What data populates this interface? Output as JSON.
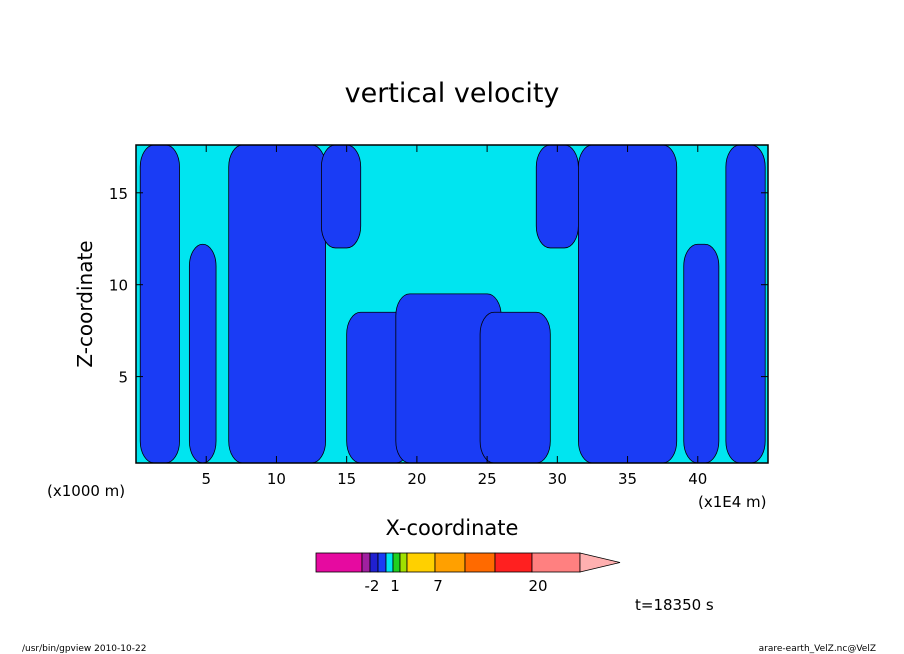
{
  "chart_data": {
    "type": "heatmap",
    "title": "vertical velocity",
    "xlabel": "X-coordinate",
    "ylabel": "Z-coordinate",
    "x_unit_left": "(x1000 m)",
    "x_unit_right": "(x1E4 m)",
    "xlim": [
      0,
      45
    ],
    "ylim": [
      0.3,
      17.6
    ],
    "x_ticks": [
      5,
      10,
      15,
      20,
      25,
      30,
      35,
      40
    ],
    "y_ticks": [
      5,
      10,
      15
    ],
    "colors": {
      "light": "#00e5f0",
      "dark": "#1a3cf5",
      "frame": "#000000"
    },
    "dark_regions": [
      {
        "x": [
          0.3,
          3.1
        ],
        "y": [
          0.3,
          17.6
        ],
        "note": "left edge band"
      },
      {
        "x": [
          3.8,
          5.7
        ],
        "y": [
          0.3,
          12.2
        ]
      },
      {
        "x": [
          6.6,
          13.5
        ],
        "y": [
          0.3,
          17.6
        ]
      },
      {
        "x": [
          13.2,
          16.0
        ],
        "y": [
          12.0,
          17.6
        ]
      },
      {
        "x": [
          15.0,
          19.5
        ],
        "y": [
          0.3,
          8.5
        ]
      },
      {
        "x": [
          18.5,
          26.0
        ],
        "y": [
          0.3,
          9.5
        ]
      },
      {
        "x": [
          24.5,
          29.5
        ],
        "y": [
          0.3,
          8.5
        ]
      },
      {
        "x": [
          28.5,
          31.5
        ],
        "y": [
          12.0,
          17.6
        ]
      },
      {
        "x": [
          31.5,
          38.5
        ],
        "y": [
          0.3,
          17.6
        ]
      },
      {
        "x": [
          39.0,
          41.5
        ],
        "y": [
          0.3,
          12.2
        ]
      },
      {
        "x": [
          42.0,
          44.8
        ],
        "y": [
          0.3,
          17.6
        ],
        "note": "right edge band"
      }
    ],
    "colorbar": {
      "colors": [
        "#e60aa0",
        "#a020a0",
        "#2020d0",
        "#1a3cf5",
        "#00e5f0",
        "#20d020",
        "#a0e000",
        "#ffd000",
        "#ffa000",
        "#ff6a00",
        "#ff2020",
        "#ff8080",
        "#ffb0b0"
      ],
      "tick_labels": [
        "-2",
        "1",
        "7",
        "20"
      ]
    },
    "time_label": "t=18350 s"
  },
  "footer": {
    "left": "/usr/bin/gpview   2010-10-22",
    "right": "arare-earth_VelZ.nc@VelZ"
  }
}
